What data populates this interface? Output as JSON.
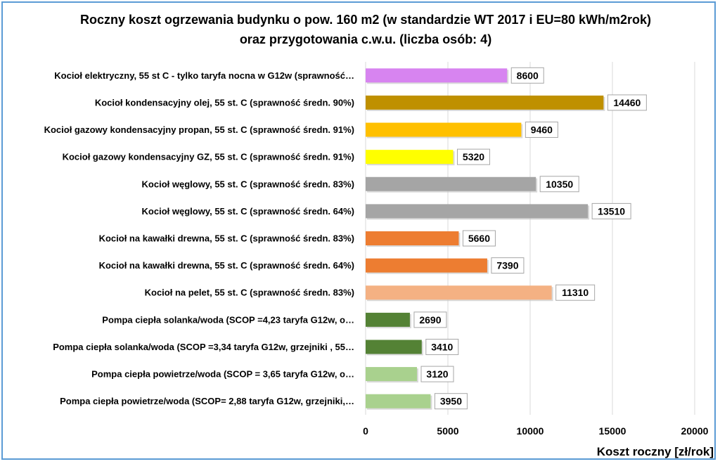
{
  "chart_data": {
    "type": "bar",
    "orientation": "horizontal",
    "title": "Roczny koszt ogrzewania budynku o pow. 160 m2 (w standardzie WT 2017 i EU=80 kWh/m2rok) oraz przygotowania c.w.u. (liczba osób: 4)",
    "xlabel": "Koszt roczny [zł/rok]",
    "ylabel": "",
    "xlim": [
      0,
      20000
    ],
    "xticks": [
      "0",
      "5000",
      "10000",
      "15000",
      "20000"
    ],
    "grid": "vertical",
    "legend": "none",
    "categories": [
      "Kocioł  elektryczny, 55 st C - tylko taryfa nocna w G12w (sprawność…",
      "Kocioł  kondensacyjny olej, 55 st. C (sprawność średn. 90%)",
      "Kocioł gazowy kondensacyjny propan, 55 st. C (sprawność średn. 91%)",
      "Kocioł gazowy kondensacyjny GZ, 55 st. C (sprawność średn. 91%)",
      "Kocioł węglowy,  55 st. C (sprawność średn. 83%)",
      "Kocioł węglowy, 55 st. C (sprawność średn. 64%)",
      "Kocioł na kawałki drewna, 55 st. C (sprawność średn. 83%)",
      "Kocioł na kawałki drewna, 55 st. C (sprawność średn. 64%)",
      "Kocioł na pelet, 55 st. C (sprawność średn. 83%)",
      "Pompa ciepła solanka/woda (SCOP =4,23 taryfa G12w, o…",
      "Pompa ciepła solanka/woda (SCOP =3,34 taryfa G12w, grzejniki , 55…",
      "Pompa ciepła powietrze/woda (SCOP = 3,65 taryfa G12w, o…",
      "Pompa ciepła powietrze/woda (SCOP= 2,88 taryfa G12w, grzejniki,…"
    ],
    "values": [
      8600,
      14460,
      9460,
      5320,
      10350,
      13510,
      5660,
      7390,
      11310,
      2690,
      3410,
      3120,
      3950
    ],
    "value_labels": [
      "8600",
      "14460",
      "9460",
      "5320",
      "10350",
      "13510",
      "5660",
      "7390",
      "11310",
      "2690",
      "3410",
      "3120",
      "3950"
    ],
    "colors": [
      "#d784f0",
      "#bf9000",
      "#ffc000",
      "#ffff00",
      "#a5a5a5",
      "#a5a5a5",
      "#ed7d31",
      "#ed7d31",
      "#f4b183",
      "#548235",
      "#548235",
      "#a9d18e",
      "#a9d18e"
    ]
  }
}
